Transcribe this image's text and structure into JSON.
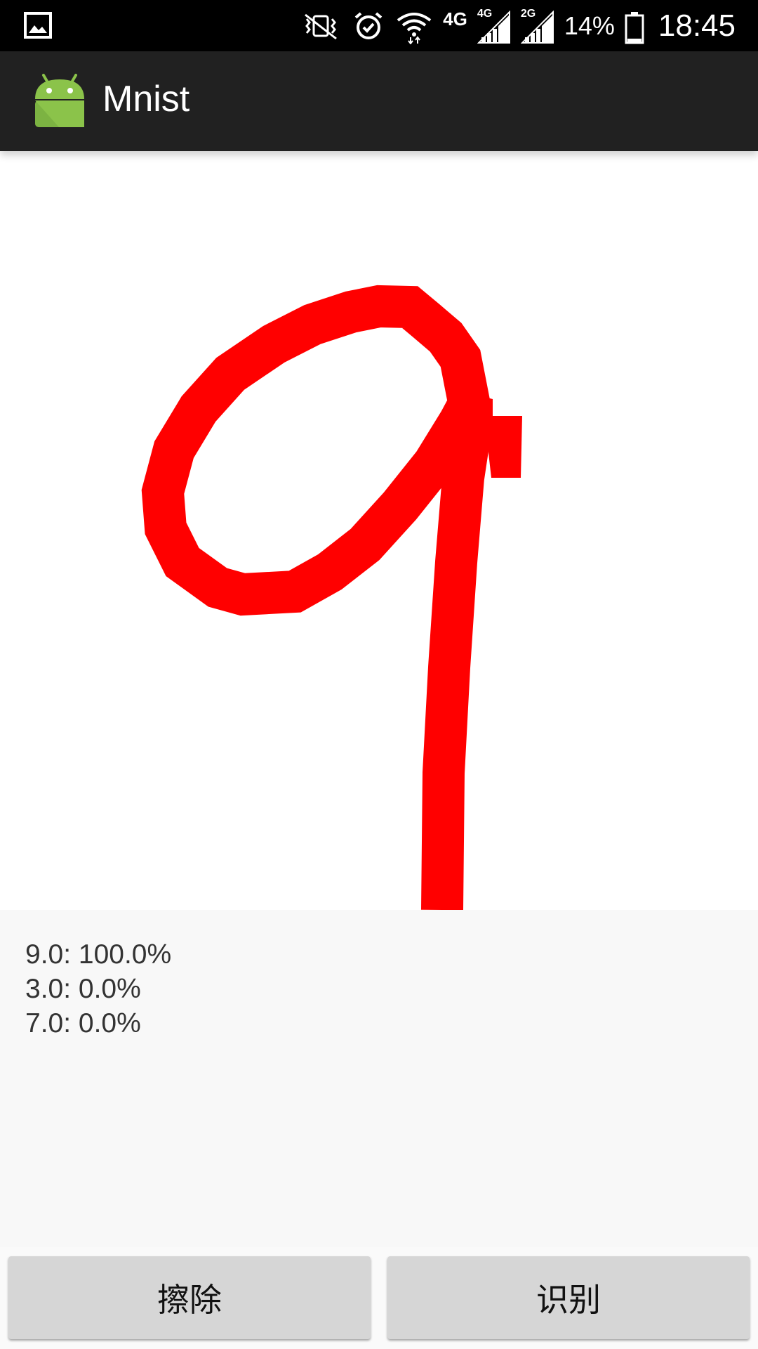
{
  "status_bar": {
    "icons": [
      "gallery-icon",
      "vibrate-icon",
      "alarm-icon",
      "wifi-icon",
      "signal-4g-icon",
      "signal-2g-icon",
      "battery-icon"
    ],
    "net_labels": {
      "lte": "4G",
      "sim1": "4G",
      "sim2": "2G"
    },
    "battery_percent": "14%",
    "time": "18:45"
  },
  "app_bar": {
    "icon": "android-icon",
    "title": "Mnist"
  },
  "canvas": {
    "stroke_color": "#ff0000",
    "background": "#ffffff"
  },
  "results": [
    {
      "text": "9.0: 100.0%"
    },
    {
      "text": "3.0: 0.0%"
    },
    {
      "text": "7.0: 0.0%"
    }
  ],
  "buttons": {
    "erase_label": "擦除",
    "recognize_label": "识别"
  },
  "colors": {
    "app_bar": "#212121",
    "status_bar": "#000000",
    "button_bg": "#d6d6d6",
    "android_green": "#8bc34a"
  }
}
